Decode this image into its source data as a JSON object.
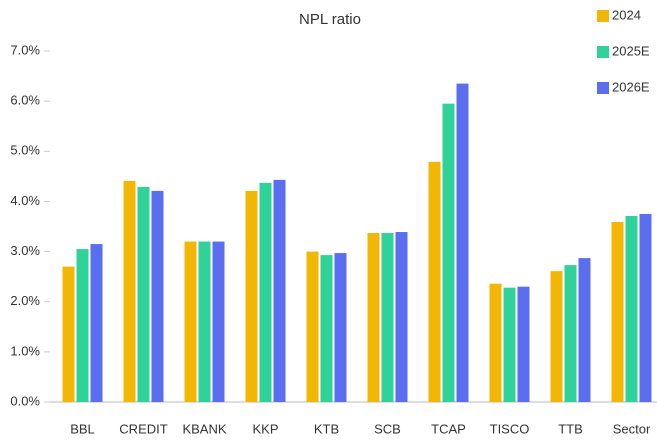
{
  "chart_data": {
    "type": "bar",
    "title": "NPL ratio",
    "categories": [
      "BBL",
      "CREDIT",
      "KBANK",
      "KKP",
      "KTB",
      "SCB",
      "TCAP",
      "TISCO",
      "TTB",
      "Sector"
    ],
    "series": [
      {
        "name": "2024",
        "color": "#f2b705",
        "values": [
          2.7,
          4.41,
          3.2,
          4.21,
          3.0,
          3.37,
          4.79,
          2.36,
          2.61,
          3.59
        ]
      },
      {
        "name": "2025E",
        "color": "#2fd39a",
        "values": [
          3.05,
          4.29,
          3.2,
          4.37,
          2.93,
          3.37,
          5.95,
          2.28,
          2.73,
          3.71
        ]
      },
      {
        "name": "2026E",
        "color": "#5b6ef0",
        "values": [
          3.15,
          4.21,
          3.2,
          4.43,
          2.97,
          3.39,
          6.35,
          2.3,
          2.87,
          3.75
        ]
      }
    ],
    "ylim": [
      0,
      7
    ],
    "yticks": [
      {
        "value": 0,
        "label": "0.0%"
      },
      {
        "value": 1,
        "label": "1.0%"
      },
      {
        "value": 2,
        "label": "2.0%"
      },
      {
        "value": 3,
        "label": "3.0%"
      },
      {
        "value": 4,
        "label": "4.0%"
      },
      {
        "value": 5,
        "label": "5.0%"
      },
      {
        "value": 6,
        "label": "6.0%"
      },
      {
        "value": 7,
        "label": "7.0%"
      }
    ],
    "legend": "top-right"
  }
}
